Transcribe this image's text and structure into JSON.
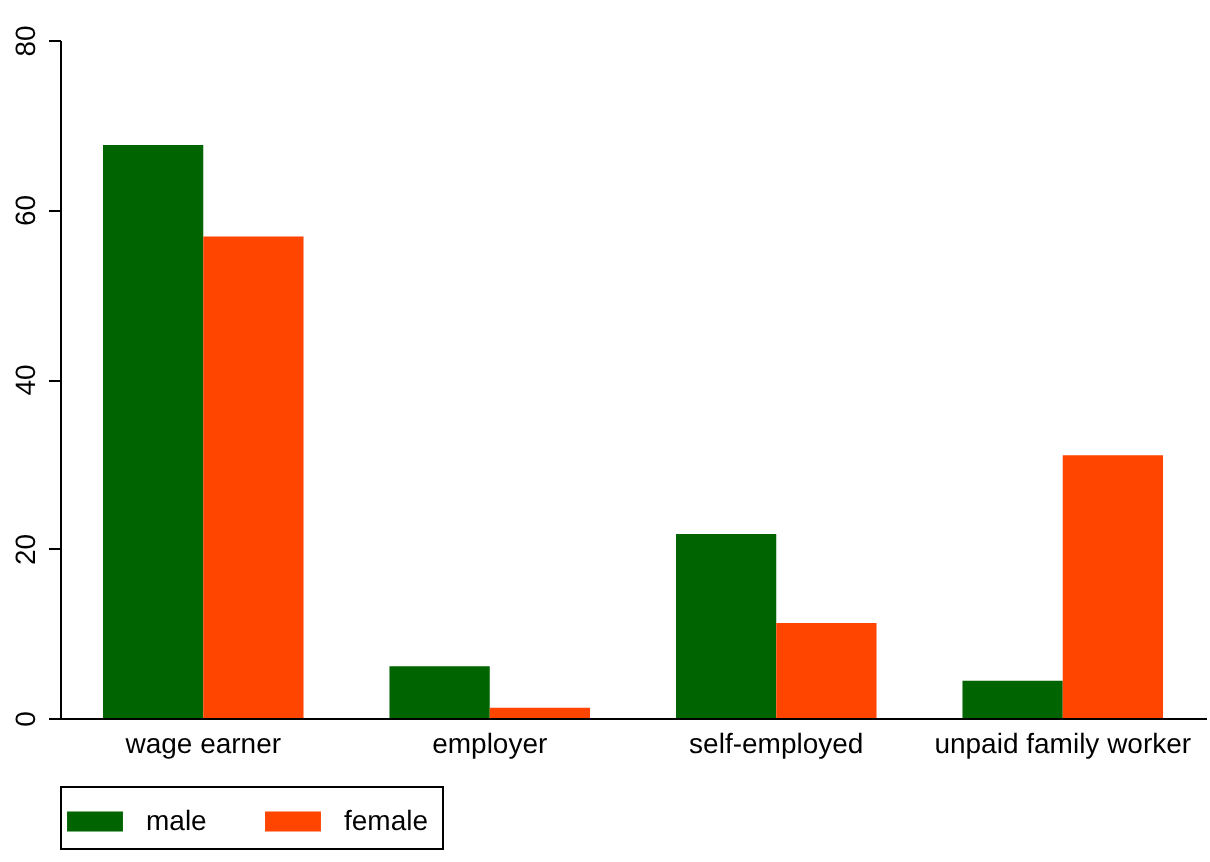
{
  "chart_data": {
    "type": "bar",
    "categories": [
      "wage earner",
      "employer",
      "self-employed",
      "unpaid family worker"
    ],
    "series": [
      {
        "name": "male",
        "color": "#006400",
        "values": [
          67.6,
          6.1,
          21.7,
          4.4
        ]
      },
      {
        "name": "female",
        "color": "#ff4500",
        "values": [
          56.8,
          1.2,
          11.2,
          31.0
        ]
      }
    ],
    "ylim": [
      0,
      80
    ],
    "yticks": [
      0,
      20,
      40,
      60,
      80
    ],
    "grid": false,
    "legend": "bottom"
  }
}
